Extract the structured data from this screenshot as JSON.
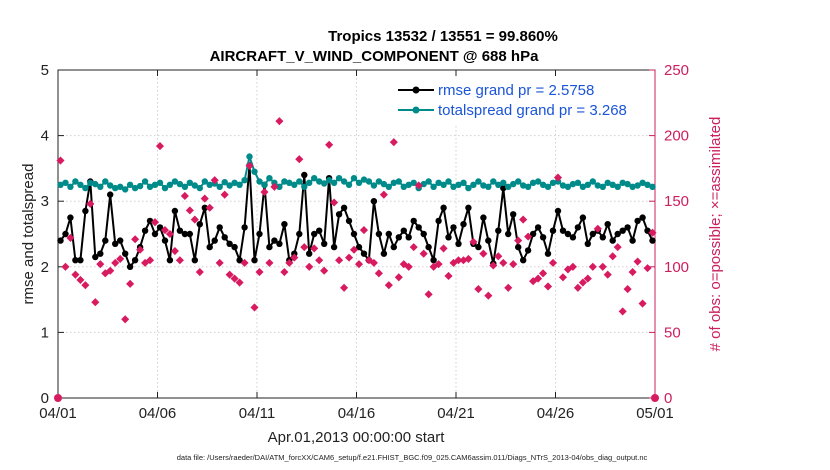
{
  "chart_data": {
    "type": "line",
    "title": "Tropics 13532 / 13551 = 99.860%",
    "subtitle": "AIRCRAFT_V_WIND_COMPONENT @ 688 hPa",
    "xlabel": "Apr.01,2013 00:00:00 start",
    "ylabel": "rmse and totalspread",
    "ylabel_right": "# of obs: o=possible; ×=assimilated",
    "footnote": "data file: /Users/raeder/DAI/ATM_forcXX/CAM6_setup/f.e21.FHIST_BGC.f09_025.CAM6assim.011/Diags_NTrS_2013-04/obs_diag_output.nc",
    "xlim": [
      0,
      30
    ],
    "ylim": [
      0,
      5
    ],
    "ylim_right": [
      0,
      250
    ],
    "x_ticks": [
      0,
      5,
      10,
      15,
      20,
      25,
      30
    ],
    "x_tick_labels": [
      "04/01",
      "04/06",
      "04/11",
      "04/16",
      "04/21",
      "04/26",
      "05/01"
    ],
    "y_ticks": [
      0,
      1,
      2,
      3,
      4,
      5
    ],
    "y_tick_labels": [
      "0",
      "1",
      "2",
      "3",
      "4",
      "5"
    ],
    "y_right_ticks": [
      0,
      50,
      100,
      150,
      200,
      250
    ],
    "y_right_tick_labels": [
      "0",
      "50",
      "100",
      "150",
      "200",
      "250"
    ],
    "x_step": 0.25,
    "x_start": 0.125,
    "series": [
      {
        "name": "rmse grand pr = 2.5758",
        "color": "#000000",
        "axis": "left",
        "marker": "dot",
        "values": [
          2.4,
          2.5,
          2.75,
          2.1,
          2.1,
          2.85,
          3.3,
          2.15,
          2.2,
          2.4,
          3.1,
          2.35,
          2.4,
          2.2,
          2.0,
          2.1,
          2.3,
          2.55,
          2.7,
          2.5,
          2.6,
          2.4,
          2.1,
          2.85,
          2.55,
          2.5,
          2.5,
          2.1,
          2.65,
          2.9,
          2.3,
          2.4,
          2.6,
          2.45,
          2.35,
          2.3,
          2.1,
          2.6,
          3.55,
          2.1,
          2.5,
          3.25,
          2.3,
          2.4,
          2.35,
          2.65,
          2.1,
          2.2,
          2.5,
          3.4,
          2.2,
          2.5,
          2.55,
          2.35,
          3.35,
          2.3,
          2.8,
          2.9,
          2.7,
          2.5,
          2.3,
          2.2,
          2.1,
          3.0,
          2.5,
          2.2,
          2.5,
          2.3,
          2.45,
          2.55,
          2.45,
          2.7,
          2.6,
          2.5,
          2.3,
          2.1,
          2.7,
          2.9,
          2.45,
          2.6,
          2.35,
          2.65,
          2.9,
          2.35,
          2.3,
          2.75,
          2.4,
          2.05,
          2.55,
          3.2,
          2.5,
          2.8,
          2.3,
          2.1,
          2.25,
          2.5,
          2.6,
          2.45,
          2.2,
          2.55,
          2.85,
          2.55,
          2.5,
          2.45,
          2.6,
          2.75,
          2.35,
          2.5,
          2.55,
          2.45,
          2.65,
          2.4,
          2.5,
          2.55,
          2.6,
          2.4,
          2.7,
          2.75,
          2.55,
          2.4
        ]
      },
      {
        "name": "totalspread grand pr = 3.268",
        "color": "#008b8b",
        "axis": "left",
        "marker": "dot",
        "values": [
          3.25,
          3.28,
          3.22,
          3.3,
          3.25,
          3.2,
          3.28,
          3.26,
          3.22,
          3.3,
          3.24,
          3.2,
          3.22,
          3.18,
          3.25,
          3.2,
          3.23,
          3.3,
          3.22,
          3.25,
          3.28,
          3.2,
          3.25,
          3.3,
          3.26,
          3.22,
          3.28,
          3.24,
          3.2,
          3.3,
          3.25,
          3.27,
          3.22,
          3.29,
          3.24,
          3.28,
          3.25,
          3.32,
          3.68,
          3.45,
          3.3,
          3.25,
          3.35,
          3.28,
          3.22,
          3.3,
          3.28,
          3.25,
          3.3,
          3.22,
          3.28,
          3.35,
          3.3,
          3.27,
          3.32,
          3.28,
          3.35,
          3.3,
          3.25,
          3.35,
          3.28,
          3.33,
          3.3,
          3.24,
          3.3,
          3.26,
          3.22,
          3.28,
          3.3,
          3.22,
          3.25,
          3.28,
          3.2,
          3.26,
          3.3,
          3.22,
          3.28,
          3.25,
          3.3,
          3.22,
          3.25,
          3.28,
          3.2,
          3.25,
          3.3,
          3.24,
          3.22,
          3.3,
          3.25,
          3.28,
          3.22,
          3.26,
          3.3,
          3.24,
          3.22,
          3.28,
          3.3,
          3.25,
          3.22,
          3.28,
          3.3,
          3.24,
          3.22,
          3.26,
          3.28,
          3.22,
          3.25,
          3.3,
          3.24,
          3.22,
          3.28,
          3.25,
          3.22,
          3.28,
          3.26,
          3.22,
          3.24,
          3.28,
          3.25,
          3.22
        ]
      },
      {
        "name": "# of obs assimilated",
        "color": "#d81b60",
        "axis": "right",
        "marker": "cross",
        "values": [
          181,
          100,
          122,
          94,
          90,
          86,
          148,
          73,
          102,
          95,
          97,
          103,
          106,
          60,
          87,
          121,
          113,
          103,
          105,
          134,
          192,
          128,
          125,
          112,
          105,
          154,
          143,
          136,
          96,
          152,
          145,
          166,
          103,
          155,
          94,
          91,
          88,
          103,
          177,
          69,
          96,
          157,
          103,
          161,
          211,
          96,
          103,
          107,
          182,
          115,
          100,
          114,
          105,
          97,
          193,
          149,
          105,
          84,
          107,
          113,
          102,
          128,
          105,
          103,
          95,
          155,
          86,
          195,
          92,
          102,
          100,
          115,
          162,
          110,
          79,
          100,
          102,
          114,
          93,
          103,
          105,
          105,
          106,
          119,
          83,
          110,
          78,
          101,
          108,
          103,
          84,
          102,
          120,
          136,
          123,
          89,
          91,
          95,
          85,
          103,
          168,
          92,
          98,
          100,
          84,
          88,
          91,
          100,
          129,
          100,
          94,
          108,
          115,
          66,
          83,
          96,
          104,
          72,
          99,
          126
        ]
      }
    ],
    "legend": [
      {
        "label": "rmse grand pr = 2.5758",
        "color": "#000000"
      },
      {
        "label": "totalspread grand pr = 3.268",
        "color": "#008b8b"
      }
    ],
    "legend_location": "top-right",
    "grid": true
  }
}
